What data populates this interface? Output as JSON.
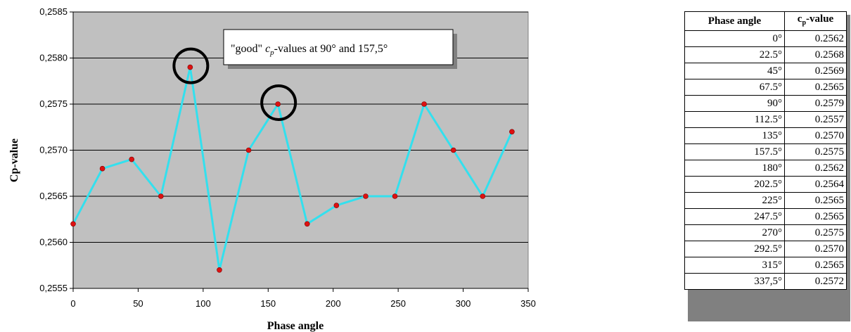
{
  "chart_data": {
    "type": "line",
    "x": [
      0,
      22.5,
      45,
      67.5,
      90,
      112.5,
      135,
      157.5,
      180,
      202.5,
      225,
      247.5,
      270,
      292.5,
      315,
      337.5
    ],
    "series": [
      {
        "values": [
          0.2562,
          0.2568,
          0.2569,
          0.2565,
          0.2579,
          0.2557,
          0.257,
          0.2575,
          0.2562,
          0.2564,
          0.2565,
          0.2565,
          0.2575,
          0.257,
          0.2565,
          0.2572
        ]
      }
    ],
    "xlabel": "Phase angle",
    "ylabel": "Cp-value",
    "xlim": [
      0,
      350
    ],
    "ylim": [
      0.2555,
      0.2585
    ],
    "xticks": [
      "0",
      "50",
      "100",
      "150",
      "200",
      "250",
      "300",
      "350"
    ],
    "yticks": [
      "0,2555",
      "0,2560",
      "0,2565",
      "0,2570",
      "0,2575",
      "0,2580",
      "0,2585"
    ],
    "grid": "horizontal",
    "line_color": "#33e0ee",
    "marker_color": "#dd1111",
    "plot_background": "#c0c0c0",
    "highlighted_points": [
      90,
      157.5
    ],
    "annotation": {
      "prefix": "\"good\" ",
      "symbol": "c",
      "subscript": "p",
      "suffix": "-values at 90° and 157,5°"
    }
  },
  "table": {
    "headers": {
      "angle": "Phase angle",
      "value_main": "c",
      "value_sub": "p",
      "value_tail": "-value"
    },
    "rows": [
      {
        "angle": "0°",
        "value": "0.2562"
      },
      {
        "angle": "22.5°",
        "value": "0.2568"
      },
      {
        "angle": "45°",
        "value": "0.2569"
      },
      {
        "angle": "67.5°",
        "value": "0.2565"
      },
      {
        "angle": "90°",
        "value": "0.2579"
      },
      {
        "angle": "112.5°",
        "value": "0.2557"
      },
      {
        "angle": "135°",
        "value": "0.2570"
      },
      {
        "angle": "157.5°",
        "value": "0.2575"
      },
      {
        "angle": "180°",
        "value": "0.2562"
      },
      {
        "angle": "202.5°",
        "value": "0.2564"
      },
      {
        "angle": "225°",
        "value": "0.2565"
      },
      {
        "angle": "247.5°",
        "value": "0.2565"
      },
      {
        "angle": "270°",
        "value": "0.2575"
      },
      {
        "angle": "292.5°",
        "value": "0.2570"
      },
      {
        "angle": "315°",
        "value": "0.2565"
      },
      {
        "angle": "337,5°",
        "value": "0.2572"
      }
    ]
  }
}
